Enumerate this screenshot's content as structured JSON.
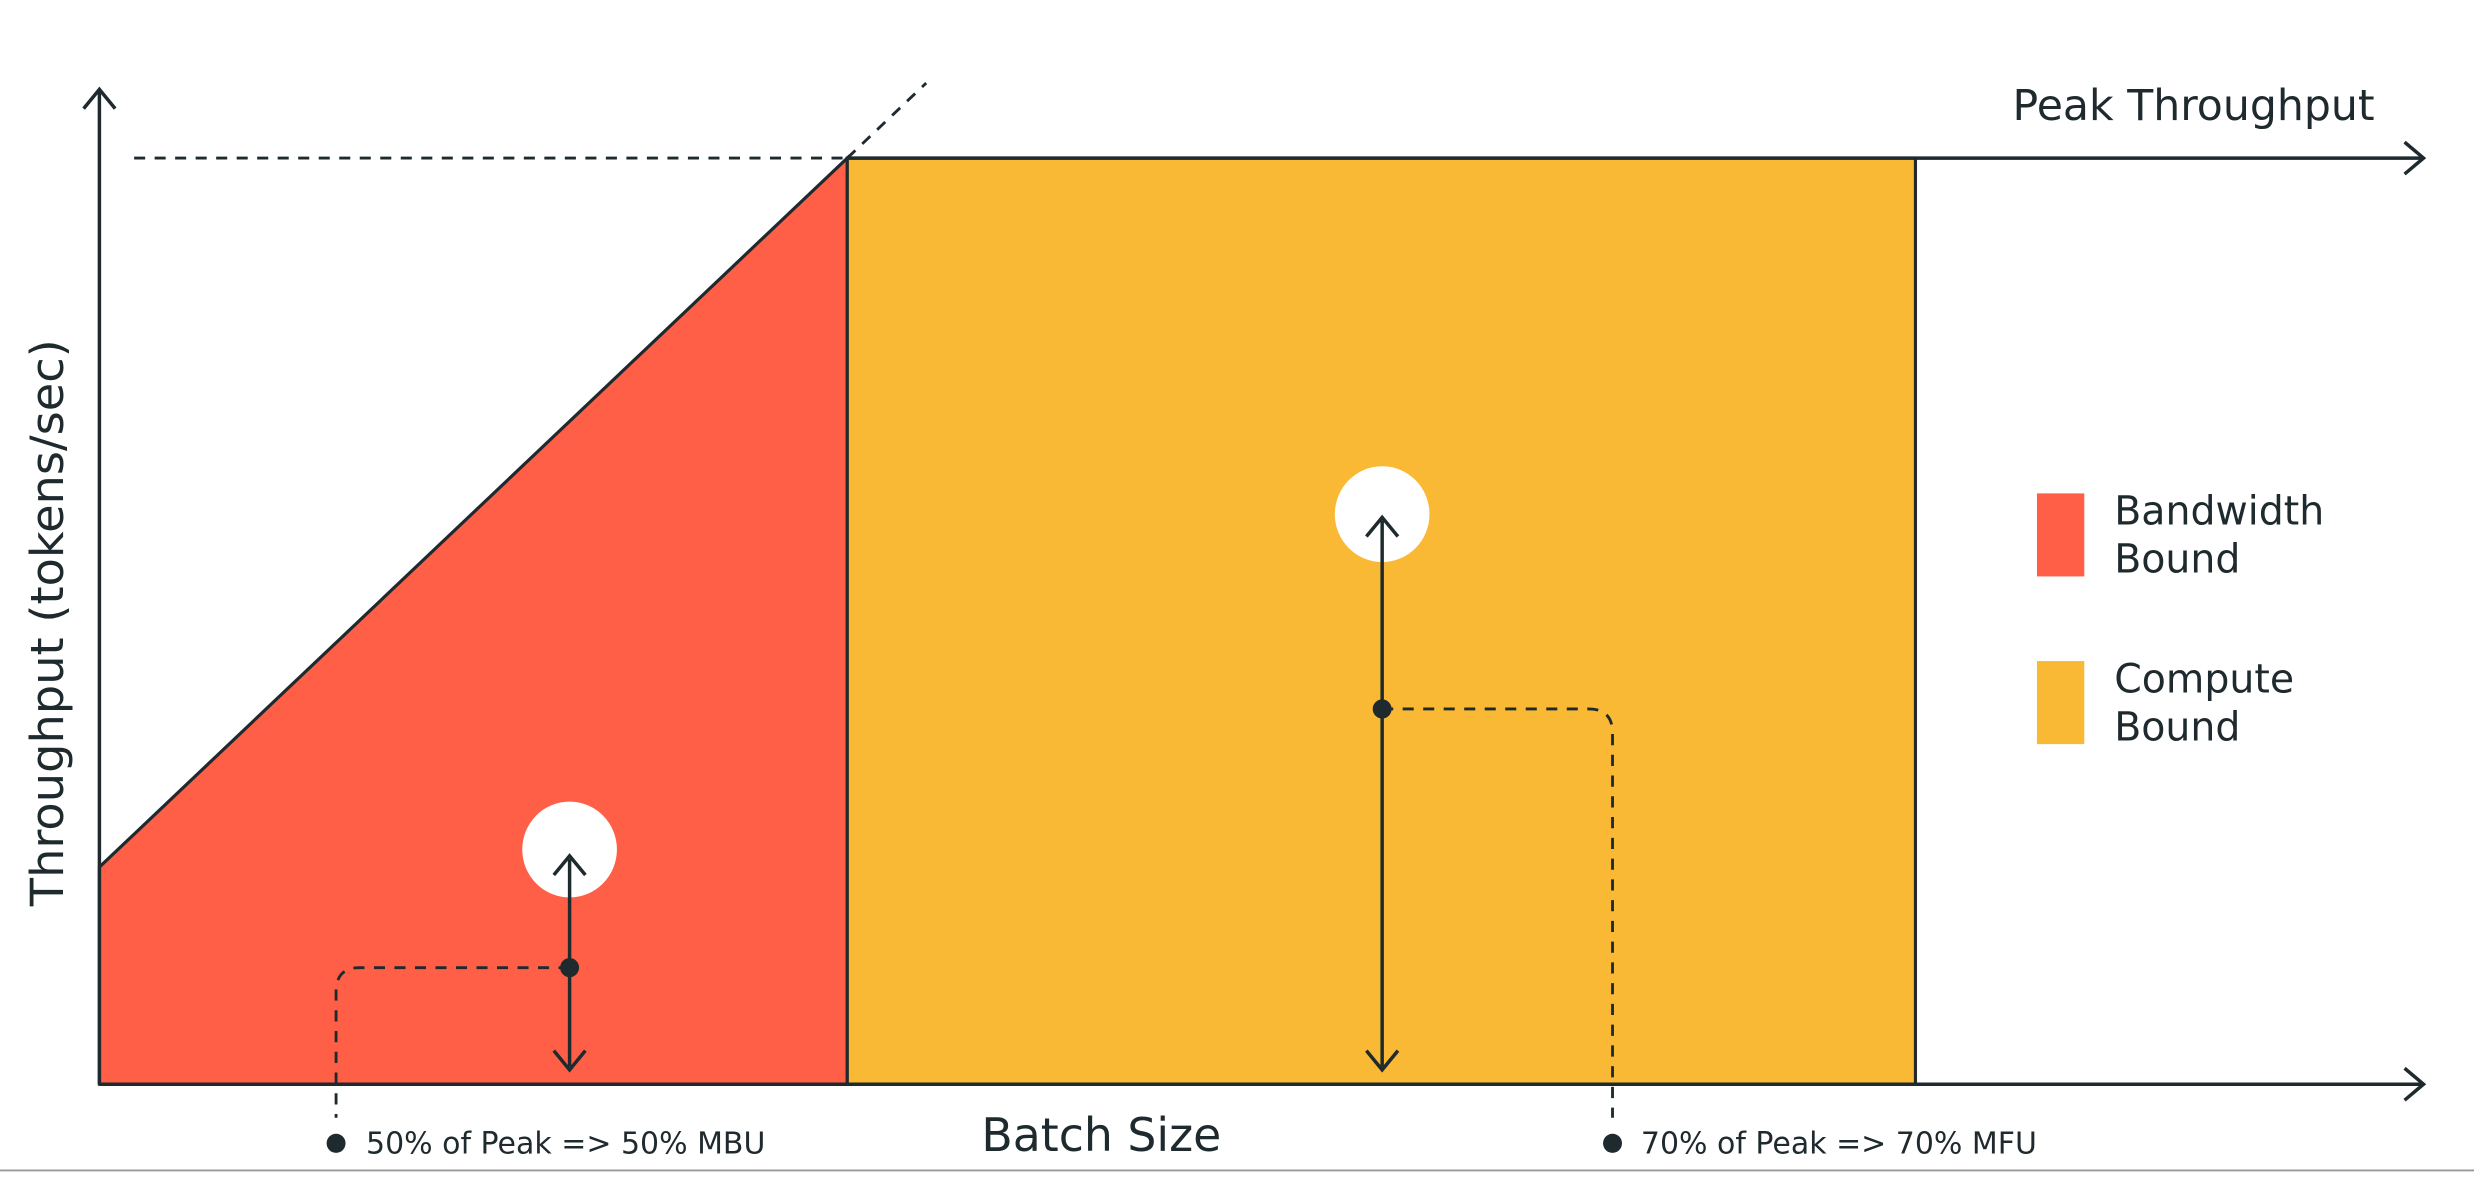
{
  "axes": {
    "x_label": "Batch Size",
    "y_label": "Throughput (tokens/sec)",
    "peak_label": "Peak Throughput"
  },
  "legend": [
    {
      "label_lines": [
        "Bandwidth",
        "Bound"
      ],
      "color": "#FF5F46"
    },
    {
      "label_lines": [
        "Compute",
        "Bound"
      ],
      "color": "#F9B934"
    }
  ],
  "annotations": [
    "50% of Peak => 50% MBU",
    "70% of Peak => 70% MFU"
  ]
}
